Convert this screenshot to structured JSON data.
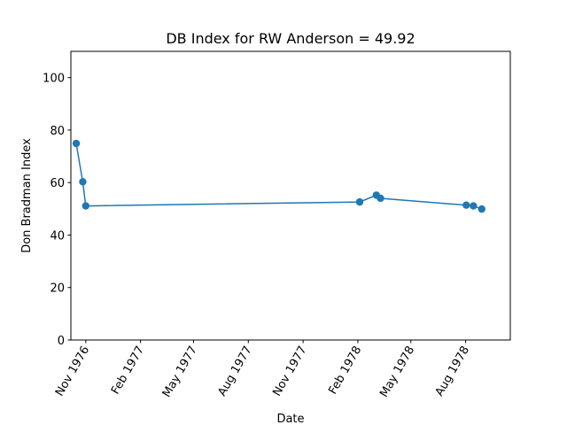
{
  "chart_data": {
    "type": "line",
    "title": "DB Index for RW Anderson = 49.92",
    "xlabel": "Date",
    "ylabel": "Don Bradman Index",
    "ylim": [
      0,
      110
    ],
    "xlim": [
      "1976-10-07",
      "1978-10-15"
    ],
    "y_ticks": [
      0,
      20,
      40,
      60,
      80,
      100
    ],
    "x_ticks": [
      {
        "date": "1976-11-01",
        "label": "Nov 1976"
      },
      {
        "date": "1977-02-01",
        "label": "Feb 1977"
      },
      {
        "date": "1977-05-01",
        "label": "May 1977"
      },
      {
        "date": "1977-08-01",
        "label": "Aug 1977"
      },
      {
        "date": "1977-11-01",
        "label": "Nov 1977"
      },
      {
        "date": "1978-02-01",
        "label": "Feb 1978"
      },
      {
        "date": "1978-05-01",
        "label": "May 1978"
      },
      {
        "date": "1978-08-01",
        "label": "Aug 1978"
      }
    ],
    "grid": false,
    "series": [
      {
        "color": "#1f77b4",
        "x": [
          "1976-10-16",
          "1976-10-27",
          "1976-11-01",
          "1978-02-04",
          "1978-03-04",
          "1978-03-11",
          "1978-08-02",
          "1978-08-14",
          "1978-08-28"
        ],
        "y": [
          74.9,
          60.3,
          51.1,
          52.6,
          55.2,
          54.0,
          51.4,
          51.1,
          49.9
        ]
      }
    ]
  }
}
